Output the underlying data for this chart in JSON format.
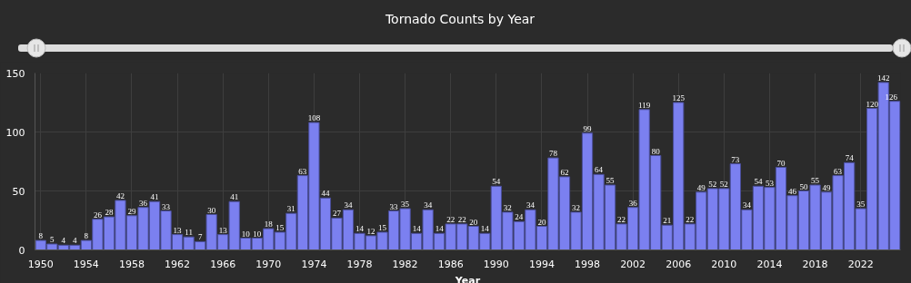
{
  "chart_data": {
    "type": "bar",
    "title": "Tornado Counts by Year",
    "xlabel": "Year",
    "x": [
      1950,
      1951,
      1952,
      1953,
      1954,
      1955,
      1956,
      1957,
      1958,
      1959,
      1960,
      1961,
      1962,
      1963,
      1964,
      1965,
      1966,
      1967,
      1968,
      1969,
      1970,
      1971,
      1972,
      1973,
      1974,
      1975,
      1976,
      1977,
      1978,
      1979,
      1980,
      1981,
      1982,
      1983,
      1984,
      1985,
      1986,
      1987,
      1988,
      1989,
      1990,
      1991,
      1992,
      1993,
      1994,
      1995,
      1996,
      1997,
      1998,
      1999,
      2000,
      2001,
      2002,
      2003,
      2004,
      2005,
      2006,
      2007,
      2008,
      2009,
      2010,
      2011,
      2012,
      2013,
      2014,
      2015,
      2016,
      2017,
      2018,
      2019,
      2020,
      2021,
      2022,
      2023,
      2024,
      2025
    ],
    "values": [
      8,
      5,
      4,
      4,
      8,
      26,
      28,
      42,
      29,
      36,
      41,
      33,
      13,
      11,
      7,
      30,
      13,
      41,
      10,
      10,
      18,
      15,
      31,
      63,
      108,
      44,
      27,
      34,
      14,
      12,
      15,
      33,
      35,
      14,
      34,
      14,
      22,
      22,
      20,
      14,
      54,
      32,
      24,
      34,
      20,
      78,
      62,
      32,
      99,
      64,
      55,
      22,
      36,
      119,
      80,
      21,
      125,
      22,
      49,
      52,
      52,
      73,
      34,
      54,
      53,
      70,
      46,
      50,
      55,
      49,
      63,
      74,
      35,
      120,
      142,
      126
    ],
    "color": "#7b80f0",
    "data_labels": true,
    "xlim": [
      1949.5,
      2025.5
    ],
    "xticks": [
      1950,
      1954,
      1958,
      1962,
      1966,
      1970,
      1974,
      1978,
      1982,
      1986,
      1990,
      1994,
      1998,
      2002,
      2006,
      2010,
      2014,
      2018,
      2022
    ],
    "ylim": [
      0,
      150
    ],
    "yticks": [
      0,
      50,
      100,
      150
    ],
    "grid": true
  }
}
